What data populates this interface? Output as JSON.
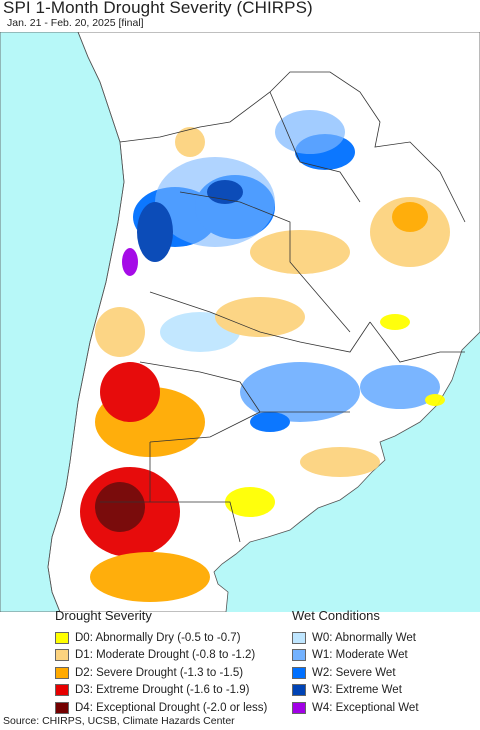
{
  "title": "SPI 1-Month Drought Severity (CHIRPS)",
  "subtitle": "Jan. 21 - Feb. 20, 2025 [final]",
  "legend": {
    "drought_header": "Drought Severity",
    "wet_header": "Wet Conditions",
    "drought": [
      {
        "label": "D0: Abnormally Dry (-0.5 to -0.7)",
        "color": "#ffff00"
      },
      {
        "label": "D1: Moderate Drought (-0.8 to -1.2)",
        "color": "#fcd37f"
      },
      {
        "label": "D2: Severe Drought (-1.3 to -1.5)",
        "color": "#ffaa00"
      },
      {
        "label": "D3: Extreme Drought (-1.6 to -1.9)",
        "color": "#e60000"
      },
      {
        "label": "D4: Exceptional Drought (-2.0 or less)",
        "color": "#730000"
      }
    ],
    "wet": [
      {
        "label": "W0: Abnormally Wet",
        "color": "#bfe6ff"
      },
      {
        "label": "W1: Moderate Wet",
        "color": "#73b2ff"
      },
      {
        "label": "W2: Severe Wet",
        "color": "#0070ff"
      },
      {
        "label": "W3: Extreme Wet",
        "color": "#0043b5"
      },
      {
        "label": "W4: Exceptional Wet",
        "color": "#a100e6"
      }
    ]
  },
  "source": "Source: CHIRPS, UCSB, Climate Hazards Center",
  "map": {
    "ocean_color": "#b7f8f8",
    "land_color": "#ffffff",
    "border_color": "#333333"
  }
}
